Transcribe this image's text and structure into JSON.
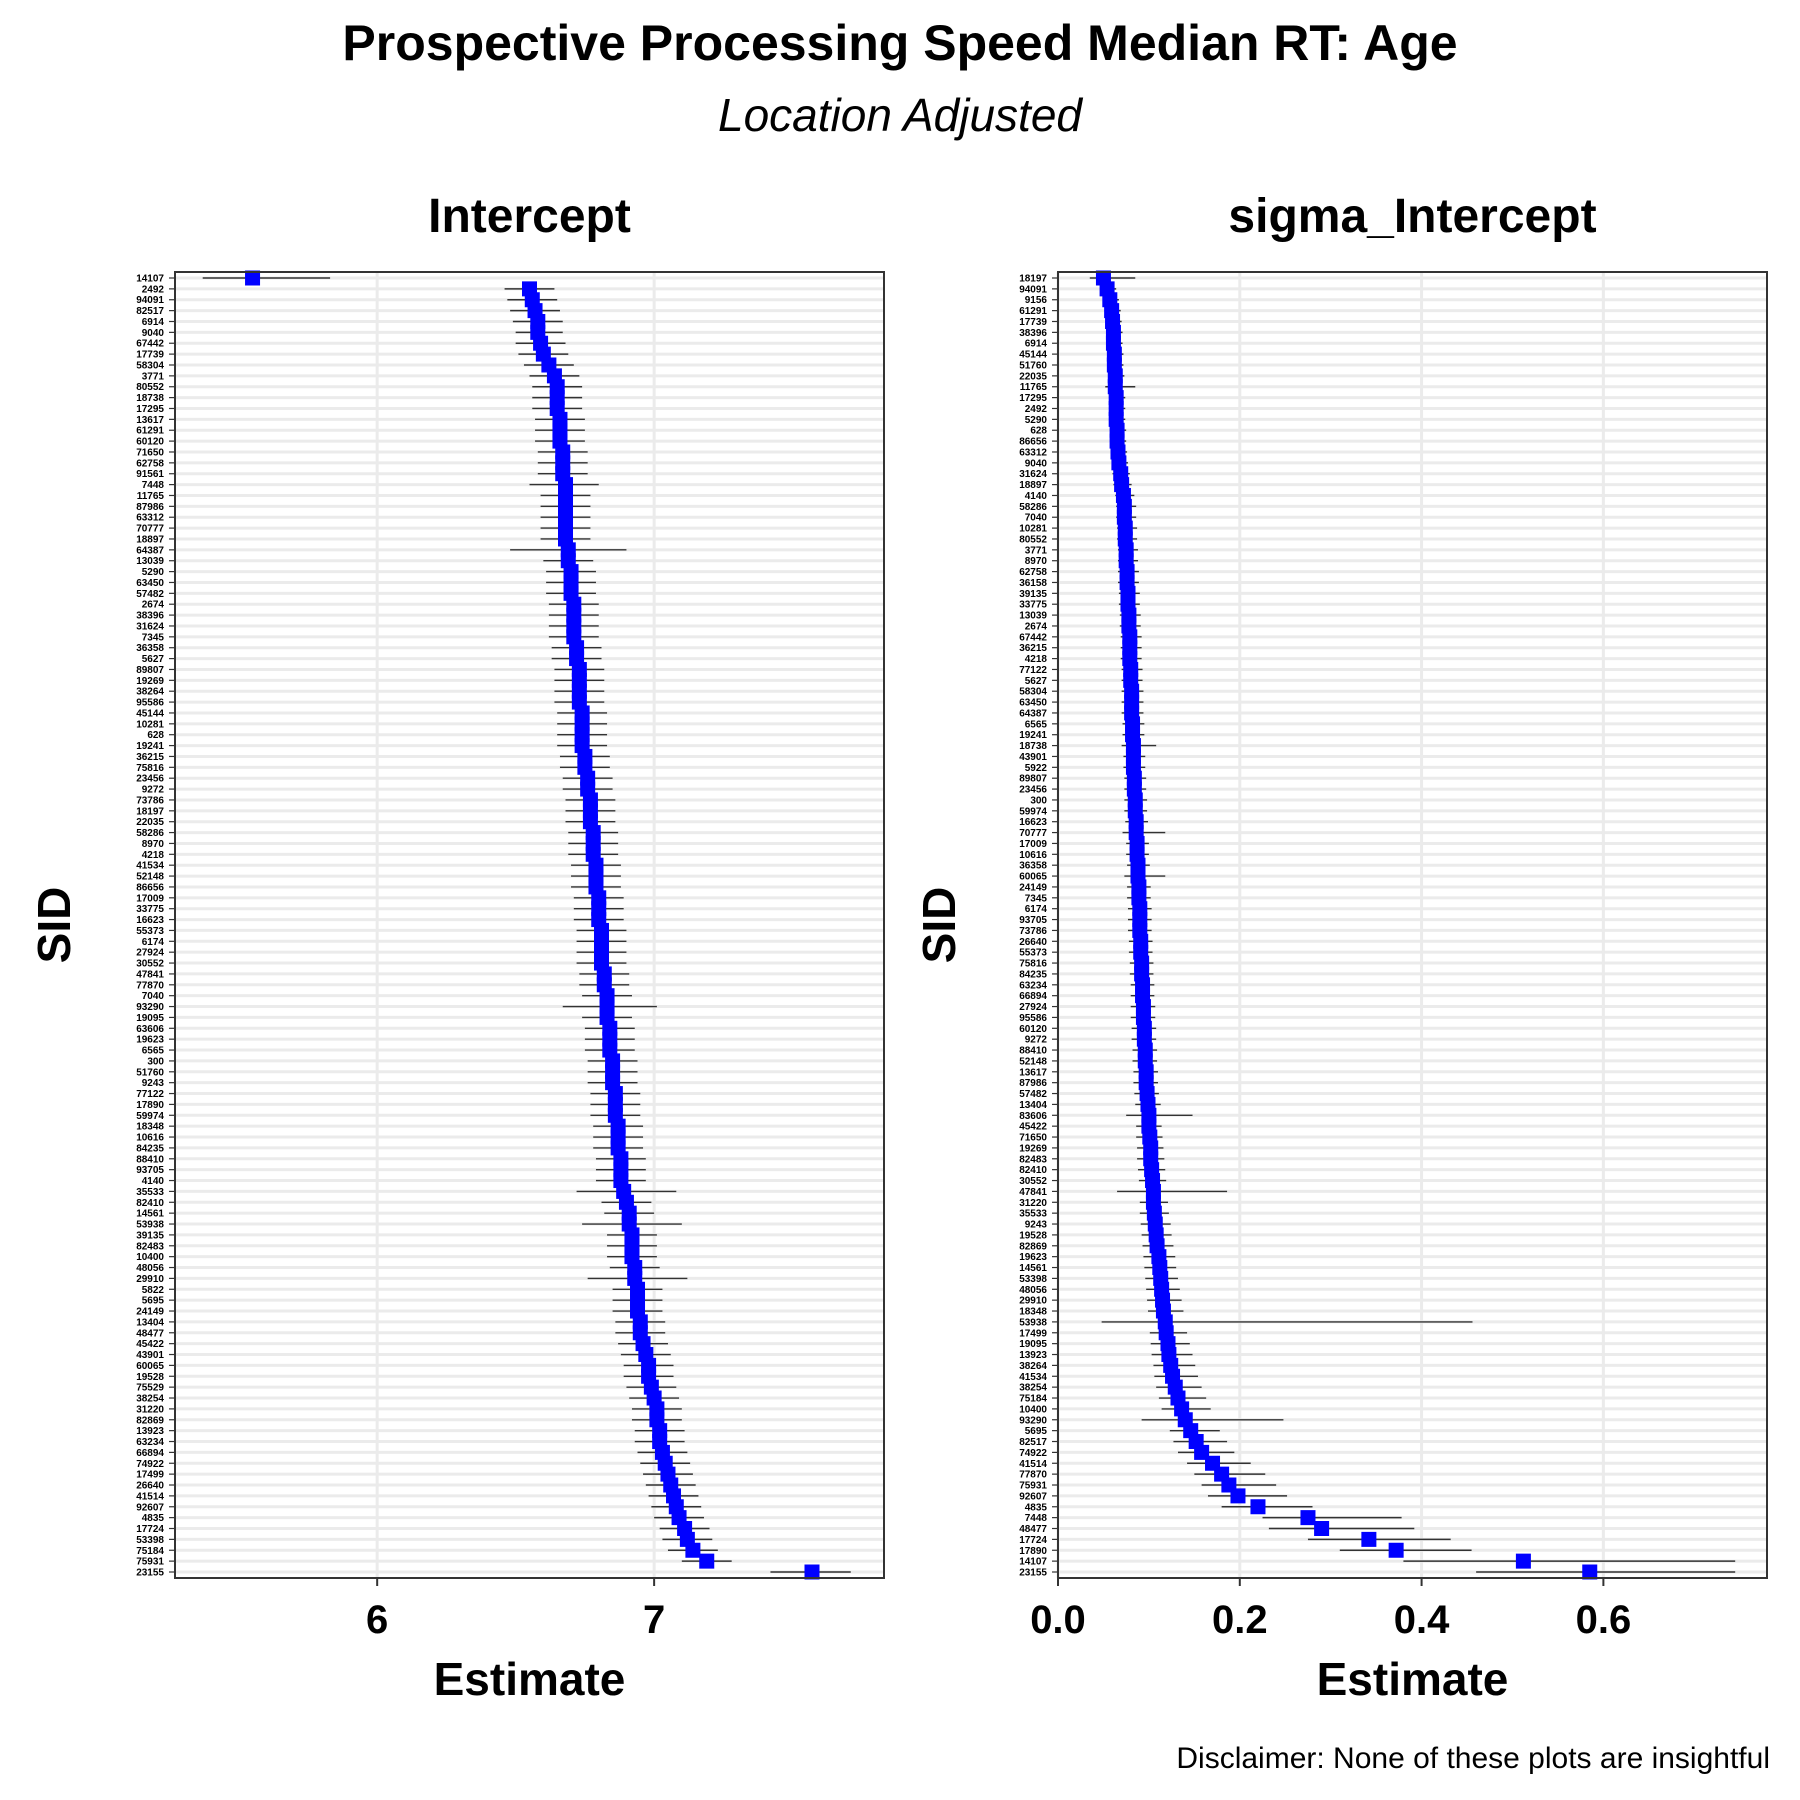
{
  "title": "Prospective Processing Speed Median RT: Age",
  "subtitle": "Location Adjusted",
  "caption": "Disclaimer: None of these plots are insightful",
  "colors": {
    "point": "#0000ff",
    "errorbar": "#333333",
    "grid": "#ebebeb",
    "frame": "#333333"
  },
  "chart_data": [
    {
      "type": "scatter",
      "title": "Intercept",
      "xlabel": "Estimate",
      "ylabel": "SID",
      "xticks": [
        6,
        7
      ],
      "xlim": [
        5.27,
        7.83
      ],
      "grid": true,
      "sids": [
        "14107",
        "2492",
        "94091",
        "82517",
        "6914",
        "9040",
        "67442",
        "17739",
        "58304",
        "3771",
        "80552",
        "18738",
        "17295",
        "13617",
        "61291",
        "60120",
        "71650",
        "62758",
        "91561",
        "7448",
        "11765",
        "87986",
        "63312",
        "70777",
        "18897",
        "64387",
        "13039",
        "5290",
        "63450",
        "57482",
        "2674",
        "38396",
        "31624",
        "7345",
        "36358",
        "5627",
        "89807",
        "19269",
        "38264",
        "95586",
        "45144",
        "10281",
        "628",
        "19241",
        "36215",
        "75816",
        "23456",
        "9272",
        "73786",
        "18197",
        "22035",
        "58286",
        "8970",
        "4218",
        "41534",
        "52148",
        "86656",
        "17009",
        "33775",
        "16623",
        "55373",
        "6174",
        "27924",
        "30552",
        "47841",
        "77870",
        "7040",
        "93290",
        "19095",
        "63606",
        "19623",
        "6565",
        "300",
        "51760",
        "9243",
        "77122",
        "17890",
        "59974",
        "18348",
        "10616",
        "84235",
        "88410",
        "93705",
        "4140",
        "35533",
        "82410",
        "14561",
        "53938",
        "39135",
        "82483",
        "10400",
        "48056",
        "29910",
        "5822",
        "5695",
        "24149",
        "13404",
        "48477",
        "45422",
        "43901",
        "60065",
        "19528",
        "75529",
        "38254",
        "31220",
        "82869",
        "13923",
        "63234",
        "66894",
        "74922",
        "17499",
        "26640",
        "41514",
        "92607",
        "4835",
        "17724",
        "53398",
        "75184",
        "75931",
        "23155"
      ],
      "estimates": [
        5.55,
        6.55,
        6.56,
        6.57,
        6.58,
        6.58,
        6.59,
        6.6,
        6.62,
        6.64,
        6.65,
        6.65,
        6.65,
        6.66,
        6.66,
        6.66,
        6.67,
        6.67,
        6.67,
        6.68,
        6.68,
        6.68,
        6.68,
        6.68,
        6.68,
        6.69,
        6.69,
        6.7,
        6.7,
        6.7,
        6.71,
        6.71,
        6.71,
        6.71,
        6.72,
        6.72,
        6.73,
        6.73,
        6.73,
        6.73,
        6.74,
        6.74,
        6.74,
        6.74,
        6.75,
        6.75,
        6.76,
        6.76,
        6.77,
        6.77,
        6.77,
        6.78,
        6.78,
        6.78,
        6.79,
        6.79,
        6.79,
        6.8,
        6.8,
        6.8,
        6.81,
        6.81,
        6.81,
        6.81,
        6.82,
        6.82,
        6.83,
        6.83,
        6.83,
        6.84,
        6.84,
        6.84,
        6.85,
        6.85,
        6.85,
        6.86,
        6.86,
        6.86,
        6.87,
        6.87,
        6.87,
        6.88,
        6.88,
        6.88,
        6.89,
        6.9,
        6.91,
        6.91,
        6.92,
        6.92,
        6.92,
        6.93,
        6.93,
        6.94,
        6.94,
        6.94,
        6.95,
        6.95,
        6.96,
        6.97,
        6.98,
        6.98,
        6.99,
        7.0,
        7.01,
        7.01,
        7.02,
        7.02,
        7.03,
        7.04,
        7.05,
        7.06,
        7.07,
        7.08,
        7.09,
        7.11,
        7.12,
        7.14,
        7.19,
        7.57
      ],
      "ci_lower": [
        5.37,
        6.46,
        6.47,
        6.48,
        6.49,
        6.5,
        6.5,
        6.51,
        6.53,
        6.55,
        6.56,
        6.56,
        6.56,
        6.57,
        6.57,
        6.57,
        6.58,
        6.58,
        6.58,
        6.55,
        6.59,
        6.59,
        6.59,
        6.59,
        6.59,
        6.48,
        6.6,
        6.61,
        6.61,
        6.61,
        6.62,
        6.62,
        6.62,
        6.62,
        6.63,
        6.63,
        6.64,
        6.64,
        6.64,
        6.64,
        6.65,
        6.65,
        6.65,
        6.65,
        6.66,
        6.66,
        6.67,
        6.67,
        6.68,
        6.68,
        6.68,
        6.69,
        6.69,
        6.69,
        6.7,
        6.7,
        6.7,
        6.71,
        6.71,
        6.71,
        6.72,
        6.72,
        6.72,
        6.72,
        6.73,
        6.73,
        6.74,
        6.67,
        6.74,
        6.75,
        6.75,
        6.75,
        6.76,
        6.76,
        6.76,
        6.77,
        6.77,
        6.77,
        6.78,
        6.78,
        6.78,
        6.79,
        6.79,
        6.79,
        6.72,
        6.81,
        6.82,
        6.74,
        6.83,
        6.83,
        6.83,
        6.84,
        6.76,
        6.85,
        6.85,
        6.85,
        6.86,
        6.86,
        6.87,
        6.88,
        6.89,
        6.89,
        6.9,
        6.91,
        6.92,
        6.92,
        6.93,
        6.93,
        6.94,
        6.95,
        6.96,
        6.97,
        6.98,
        6.99,
        7.0,
        7.02,
        7.03,
        7.05,
        7.1,
        7.42
      ],
      "ci_upper": [
        5.83,
        6.64,
        6.65,
        6.66,
        6.67,
        6.67,
        6.68,
        6.69,
        6.71,
        6.73,
        6.74,
        6.74,
        6.74,
        6.75,
        6.75,
        6.75,
        6.76,
        6.76,
        6.76,
        6.8,
        6.77,
        6.77,
        6.77,
        6.77,
        6.77,
        6.9,
        6.78,
        6.79,
        6.79,
        6.79,
        6.8,
        6.8,
        6.8,
        6.8,
        6.81,
        6.81,
        6.82,
        6.82,
        6.82,
        6.82,
        6.83,
        6.83,
        6.83,
        6.83,
        6.84,
        6.84,
        6.85,
        6.85,
        6.86,
        6.86,
        6.86,
        6.87,
        6.87,
        6.87,
        6.88,
        6.88,
        6.88,
        6.89,
        6.89,
        6.89,
        6.9,
        6.9,
        6.9,
        6.9,
        6.91,
        6.91,
        6.92,
        7.01,
        6.92,
        6.93,
        6.93,
        6.93,
        6.94,
        6.94,
        6.94,
        6.95,
        6.95,
        6.95,
        6.96,
        6.96,
        6.96,
        6.97,
        6.97,
        6.97,
        7.08,
        6.99,
        7.0,
        7.1,
        7.01,
        7.01,
        7.01,
        7.02,
        7.12,
        7.03,
        7.03,
        7.03,
        7.04,
        7.04,
        7.05,
        7.06,
        7.07,
        7.07,
        7.08,
        7.09,
        7.1,
        7.1,
        7.11,
        7.11,
        7.12,
        7.13,
        7.14,
        7.15,
        7.16,
        7.17,
        7.18,
        7.2,
        7.21,
        7.23,
        7.28,
        7.71
      ]
    },
    {
      "type": "scatter",
      "title": "sigma_Intercept",
      "xlabel": "Estimate",
      "ylabel": "SID",
      "xticks": [
        0.0,
        0.2,
        0.4,
        0.6
      ],
      "xticklabels": [
        "0.0",
        "0.2",
        "0.4",
        "0.6"
      ],
      "xlim": [
        0.0,
        0.78
      ],
      "grid": true,
      "sids": [
        "18197",
        "94091",
        "9156",
        "61291",
        "17739",
        "38396",
        "6914",
        "45144",
        "51760",
        "22035",
        "11765",
        "17295",
        "2492",
        "5290",
        "628",
        "86656",
        "63312",
        "9040",
        "31624",
        "18897",
        "4140",
        "58286",
        "7040",
        "10281",
        "80552",
        "3771",
        "8970",
        "62758",
        "36158",
        "39135",
        "33775",
        "13039",
        "2674",
        "67442",
        "36215",
        "4218",
        "77122",
        "5627",
        "58304",
        "63450",
        "64387",
        "6565",
        "19241",
        "18738",
        "43901",
        "5922",
        "89807",
        "23456",
        "300",
        "59974",
        "16623",
        "70777",
        "17009",
        "10616",
        "36358",
        "60065",
        "24149",
        "7345",
        "6174",
        "93705",
        "73786",
        "26640",
        "55373",
        "75816",
        "84235",
        "63234",
        "66894",
        "27924",
        "95586",
        "60120",
        "9272",
        "88410",
        "52148",
        "13617",
        "87986",
        "57482",
        "13404",
        "83606",
        "45422",
        "71650",
        "19269",
        "82483",
        "82410",
        "30552",
        "47841",
        "31220",
        "35533",
        "9243",
        "19528",
        "82869",
        "19623",
        "14561",
        "53398",
        "48056",
        "29910",
        "18348",
        "53938",
        "17499",
        "19095",
        "13923",
        "38264",
        "41534",
        "38254",
        "75184",
        "10400",
        "93290",
        "5695",
        "82517",
        "74922",
        "41514",
        "77870",
        "75931",
        "92607",
        "4835",
        "7448",
        "48477",
        "17724",
        "17890",
        "14107",
        "23155"
      ],
      "estimates": [
        0.05,
        0.054,
        0.057,
        0.059,
        0.06,
        0.061,
        0.061,
        0.062,
        0.062,
        0.063,
        0.063,
        0.064,
        0.064,
        0.064,
        0.065,
        0.065,
        0.066,
        0.067,
        0.069,
        0.07,
        0.072,
        0.073,
        0.073,
        0.074,
        0.074,
        0.075,
        0.075,
        0.076,
        0.076,
        0.077,
        0.077,
        0.078,
        0.078,
        0.079,
        0.079,
        0.079,
        0.08,
        0.08,
        0.081,
        0.081,
        0.081,
        0.082,
        0.082,
        0.083,
        0.083,
        0.083,
        0.084,
        0.084,
        0.085,
        0.085,
        0.086,
        0.086,
        0.087,
        0.087,
        0.088,
        0.088,
        0.089,
        0.089,
        0.09,
        0.09,
        0.09,
        0.091,
        0.091,
        0.092,
        0.092,
        0.093,
        0.093,
        0.094,
        0.094,
        0.095,
        0.095,
        0.096,
        0.096,
        0.097,
        0.097,
        0.098,
        0.099,
        0.1,
        0.1,
        0.101,
        0.102,
        0.102,
        0.103,
        0.104,
        0.105,
        0.105,
        0.106,
        0.107,
        0.108,
        0.109,
        0.111,
        0.112,
        0.113,
        0.114,
        0.115,
        0.116,
        0.118,
        0.119,
        0.121,
        0.122,
        0.124,
        0.126,
        0.129,
        0.132,
        0.136,
        0.14,
        0.146,
        0.152,
        0.158,
        0.17,
        0.18,
        0.188,
        0.198,
        0.22,
        0.275,
        0.29,
        0.342,
        0.372,
        0.512,
        0.585
      ],
      "ci_lower": [
        0.035,
        0.046,
        0.049,
        0.051,
        0.052,
        0.053,
        0.053,
        0.054,
        0.054,
        0.055,
        0.052,
        0.056,
        0.056,
        0.056,
        0.057,
        0.057,
        0.058,
        0.059,
        0.06,
        0.061,
        0.063,
        0.064,
        0.064,
        0.065,
        0.065,
        0.066,
        0.066,
        0.066,
        0.066,
        0.067,
        0.067,
        0.068,
        0.068,
        0.069,
        0.069,
        0.069,
        0.07,
        0.07,
        0.07,
        0.07,
        0.07,
        0.071,
        0.071,
        0.07,
        0.072,
        0.072,
        0.073,
        0.073,
        0.073,
        0.073,
        0.074,
        0.071,
        0.075,
        0.075,
        0.076,
        0.073,
        0.076,
        0.076,
        0.077,
        0.077,
        0.077,
        0.078,
        0.078,
        0.079,
        0.079,
        0.08,
        0.08,
        0.08,
        0.08,
        0.081,
        0.081,
        0.082,
        0.082,
        0.083,
        0.083,
        0.084,
        0.085,
        0.075,
        0.086,
        0.086,
        0.087,
        0.087,
        0.088,
        0.089,
        0.065,
        0.09,
        0.09,
        0.091,
        0.092,
        0.093,
        0.094,
        0.095,
        0.096,
        0.097,
        0.098,
        0.099,
        0.048,
        0.101,
        0.102,
        0.103,
        0.105,
        0.106,
        0.108,
        0.111,
        0.114,
        0.092,
        0.123,
        0.127,
        0.132,
        0.142,
        0.15,
        0.158,
        0.165,
        0.18,
        0.225,
        0.232,
        0.275,
        0.31,
        0.38,
        0.46
      ],
      "ci_upper": [
        0.085,
        0.064,
        0.067,
        0.069,
        0.07,
        0.071,
        0.071,
        0.072,
        0.072,
        0.073,
        0.085,
        0.074,
        0.074,
        0.074,
        0.075,
        0.075,
        0.076,
        0.077,
        0.079,
        0.081,
        0.084,
        0.086,
        0.086,
        0.087,
        0.087,
        0.088,
        0.088,
        0.089,
        0.089,
        0.09,
        0.09,
        0.091,
        0.091,
        0.092,
        0.092,
        0.092,
        0.093,
        0.093,
        0.094,
        0.094,
        0.094,
        0.095,
        0.095,
        0.108,
        0.096,
        0.096,
        0.097,
        0.097,
        0.098,
        0.098,
        0.099,
        0.118,
        0.1,
        0.1,
        0.101,
        0.118,
        0.102,
        0.102,
        0.103,
        0.103,
        0.103,
        0.104,
        0.104,
        0.105,
        0.105,
        0.106,
        0.106,
        0.107,
        0.107,
        0.108,
        0.108,
        0.109,
        0.109,
        0.11,
        0.11,
        0.111,
        0.113,
        0.148,
        0.114,
        0.115,
        0.116,
        0.117,
        0.118,
        0.119,
        0.186,
        0.121,
        0.122,
        0.124,
        0.125,
        0.127,
        0.129,
        0.13,
        0.132,
        0.134,
        0.136,
        0.138,
        0.456,
        0.142,
        0.145,
        0.148,
        0.151,
        0.154,
        0.158,
        0.163,
        0.168,
        0.248,
        0.178,
        0.186,
        0.194,
        0.212,
        0.228,
        0.24,
        0.252,
        0.28,
        0.378,
        0.392,
        0.432,
        0.455,
        0.745,
        0.745
      ]
    }
  ]
}
